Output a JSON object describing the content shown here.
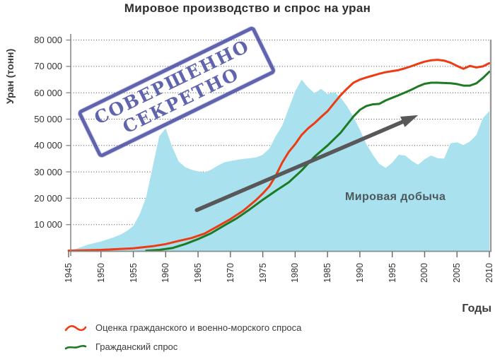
{
  "title": "Мировое производство и спрос на уран",
  "y_axis": {
    "label": "Уран (тонн)",
    "tick_labels": [
      "10 000",
      "20 000",
      "30 000",
      "40 000",
      "50 000",
      "60 000",
      "70 000",
      "80 000"
    ],
    "tick_values": [
      10000,
      20000,
      30000,
      40000,
      50000,
      60000,
      70000,
      80000
    ],
    "min": 0,
    "max": 80000
  },
  "x_axis": {
    "label": "Годы",
    "tick_labels": [
      "1945",
      "1950",
      "1955",
      "1960",
      "1965",
      "1970",
      "1975",
      "1980",
      "1985",
      "1990",
      "1995",
      "2000",
      "2005",
      "2010"
    ],
    "tick_values": [
      1945,
      1950,
      1955,
      1960,
      1965,
      1970,
      1975,
      1980,
      1985,
      1990,
      1995,
      2000,
      2005,
      2010
    ],
    "min": 1945,
    "max": 2010
  },
  "stamp": {
    "line1": "СОВЕРШЕННО",
    "line2": "СЕКРЕТНО",
    "color": "#4b4fa5"
  },
  "area_label": "Мировая добыча",
  "legend": [
    {
      "label": "Оценка гражданского и военно-морского спроса",
      "color": "#ee3b13"
    },
    {
      "label": "Гражданский спрос",
      "color": "#1e7a23"
    }
  ],
  "colors": {
    "production_fill": "#a9e2ee",
    "total_demand_line": "#ee3b13",
    "civil_demand_line": "#1e7a23",
    "arrow": "#58585a",
    "grid": "#454545",
    "spine": "#8a8a8a",
    "text": "#333333",
    "background": "#ffffff"
  },
  "chart_data": {
    "type": "area",
    "title": "Мировое производство и спрос на уран",
    "xlabel": "Годы",
    "ylabel": "Уран (тонн)",
    "xlim": [
      1945,
      2010
    ],
    "ylim": [
      0,
      80000
    ],
    "grid": "dotted-horizontal",
    "legend_position": "bottom-left",
    "series": [
      {
        "name": "Мировая добыча",
        "type": "area",
        "color": "#a9e2ee",
        "points": [
          [
            1945,
            200
          ],
          [
            1946,
            700
          ],
          [
            1947,
            1500
          ],
          [
            1948,
            2400
          ],
          [
            1949,
            3000
          ],
          [
            1950,
            3600
          ],
          [
            1951,
            4400
          ],
          [
            1952,
            5200
          ],
          [
            1953,
            6200
          ],
          [
            1954,
            7600
          ],
          [
            1955,
            9500
          ],
          [
            1956,
            14000
          ],
          [
            1957,
            20500
          ],
          [
            1958,
            32000
          ],
          [
            1959,
            43500
          ],
          [
            1960,
            46500
          ],
          [
            1961,
            39500
          ],
          [
            1962,
            34000
          ],
          [
            1963,
            31800
          ],
          [
            1964,
            30800
          ],
          [
            1965,
            30200
          ],
          [
            1966,
            29800
          ],
          [
            1967,
            30800
          ],
          [
            1968,
            32300
          ],
          [
            1969,
            33600
          ],
          [
            1970,
            34100
          ],
          [
            1971,
            34500
          ],
          [
            1972,
            34900
          ],
          [
            1973,
            35200
          ],
          [
            1974,
            35500
          ],
          [
            1975,
            36500
          ],
          [
            1976,
            38800
          ],
          [
            1977,
            43500
          ],
          [
            1978,
            47500
          ],
          [
            1979,
            54000
          ],
          [
            1980,
            60500
          ],
          [
            1981,
            65000
          ],
          [
            1982,
            62000
          ],
          [
            1983,
            59800
          ],
          [
            1984,
            61500
          ],
          [
            1985,
            59500
          ],
          [
            1986,
            60300
          ],
          [
            1987,
            58200
          ],
          [
            1988,
            55000
          ],
          [
            1989,
            50800
          ],
          [
            1990,
            46000
          ],
          [
            1991,
            40500
          ],
          [
            1992,
            36500
          ],
          [
            1993,
            33000
          ],
          [
            1994,
            31500
          ],
          [
            1995,
            33500
          ],
          [
            1996,
            36500
          ],
          [
            1997,
            36200
          ],
          [
            1998,
            34200
          ],
          [
            1999,
            32700
          ],
          [
            2000,
            34800
          ],
          [
            2001,
            36200
          ],
          [
            2002,
            35200
          ],
          [
            2003,
            35000
          ],
          [
            2004,
            40800
          ],
          [
            2005,
            41200
          ],
          [
            2006,
            40200
          ],
          [
            2007,
            41500
          ],
          [
            2008,
            44000
          ],
          [
            2009,
            50400
          ],
          [
            2010,
            53000
          ]
        ]
      },
      {
        "name": "Оценка гражданского и военно-морского спроса",
        "type": "line",
        "color": "#ee3b13",
        "points": [
          [
            1945,
            100
          ],
          [
            1950,
            400
          ],
          [
            1955,
            1000
          ],
          [
            1958,
            1800
          ],
          [
            1960,
            2600
          ],
          [
            1962,
            3800
          ],
          [
            1964,
            4900
          ],
          [
            1966,
            6600
          ],
          [
            1968,
            9300
          ],
          [
            1970,
            12100
          ],
          [
            1972,
            15300
          ],
          [
            1974,
            19400
          ],
          [
            1975,
            21800
          ],
          [
            1976,
            24500
          ],
          [
            1977,
            28500
          ],
          [
            1978,
            33500
          ],
          [
            1979,
            37500
          ],
          [
            1980,
            40500
          ],
          [
            1981,
            44000
          ],
          [
            1982,
            46500
          ],
          [
            1983,
            48500
          ],
          [
            1984,
            50800
          ],
          [
            1985,
            53000
          ],
          [
            1986,
            56000
          ],
          [
            1987,
            59000
          ],
          [
            1988,
            61500
          ],
          [
            1989,
            63800
          ],
          [
            1990,
            65000
          ],
          [
            1991,
            65800
          ],
          [
            1992,
            66500
          ],
          [
            1993,
            67200
          ],
          [
            1994,
            67800
          ],
          [
            1995,
            68200
          ],
          [
            1996,
            68600
          ],
          [
            1997,
            69300
          ],
          [
            1998,
            70100
          ],
          [
            1999,
            71000
          ],
          [
            2000,
            71800
          ],
          [
            2001,
            72300
          ],
          [
            2002,
            72500
          ],
          [
            2003,
            72200
          ],
          [
            2004,
            71400
          ],
          [
            2005,
            70200
          ],
          [
            2006,
            69100
          ],
          [
            2007,
            70200
          ],
          [
            2008,
            69600
          ],
          [
            2009,
            70000
          ],
          [
            2010,
            71200
          ]
        ]
      },
      {
        "name": "Гражданский спрос",
        "type": "line",
        "color": "#1e7a23",
        "points": [
          [
            1957,
            100
          ],
          [
            1959,
            400
          ],
          [
            1961,
            1100
          ],
          [
            1963,
            2600
          ],
          [
            1965,
            4500
          ],
          [
            1967,
            6700
          ],
          [
            1969,
            9600
          ],
          [
            1971,
            12400
          ],
          [
            1973,
            15800
          ],
          [
            1975,
            19400
          ],
          [
            1977,
            22800
          ],
          [
            1979,
            26000
          ],
          [
            1981,
            30500
          ],
          [
            1983,
            35800
          ],
          [
            1985,
            40000
          ],
          [
            1987,
            44800
          ],
          [
            1989,
            51000
          ],
          [
            1990,
            53500
          ],
          [
            1991,
            55000
          ],
          [
            1992,
            55600
          ],
          [
            1993,
            55800
          ],
          [
            1994,
            57100
          ],
          [
            1995,
            58100
          ],
          [
            1996,
            59100
          ],
          [
            1997,
            60100
          ],
          [
            1998,
            61200
          ],
          [
            1999,
            62400
          ],
          [
            2000,
            63400
          ],
          [
            2001,
            63800
          ],
          [
            2002,
            63800
          ],
          [
            2003,
            63700
          ],
          [
            2004,
            63600
          ],
          [
            2005,
            63300
          ],
          [
            2006,
            62700
          ],
          [
            2007,
            62700
          ],
          [
            2008,
            63600
          ],
          [
            2009,
            65600
          ],
          [
            2010,
            68000
          ]
        ]
      }
    ],
    "annotations": {
      "trend_arrow": {
        "from": [
          1964.8,
          15500
        ],
        "to": [
          1999,
          51500
        ]
      }
    }
  }
}
